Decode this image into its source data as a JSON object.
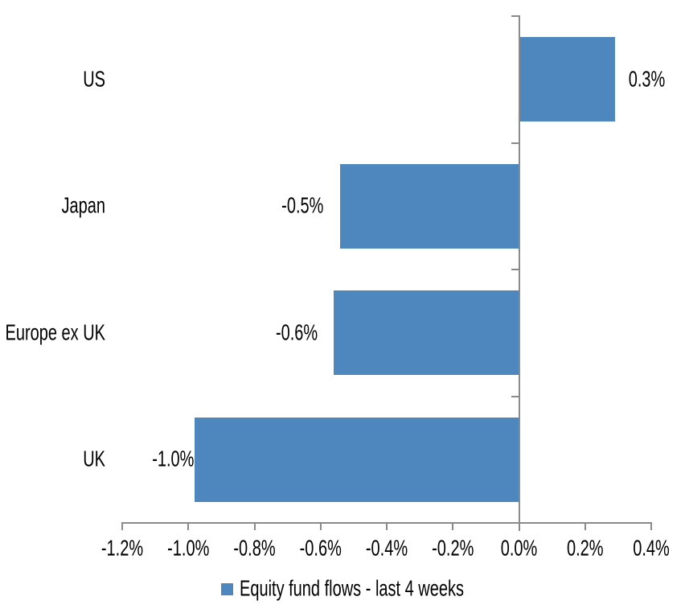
{
  "chart_data": {
    "type": "bar",
    "orientation": "horizontal",
    "title": "",
    "xlabel": "",
    "ylabel": "",
    "categories": [
      "US",
      "Japan",
      "Europe ex UK",
      "UK"
    ],
    "values": [
      0.3,
      -0.5,
      -0.6,
      -1.0
    ],
    "value_labels": [
      "0.3%",
      "-0.5%",
      "-0.6%",
      "-1.0%"
    ],
    "bar_render_values": [
      0.29,
      -0.54,
      -0.56,
      -0.98
    ],
    "series": [
      {
        "name": "Equity fund flows - last 4 weeks",
        "values": [
          0.3,
          -0.5,
          -0.6,
          -1.0
        ]
      }
    ],
    "x_axis": {
      "min": -1.2,
      "max": 0.4,
      "tick_step": 0.2,
      "unit": "%",
      "tick_labels": [
        "-1.2%",
        "-1.0%",
        "-0.8%",
        "-0.6%",
        "-0.4%",
        "-0.2%",
        "0.0%",
        "0.2%",
        "0.4%"
      ]
    },
    "legend": {
      "position": "bottom",
      "label": "Equity fund flows - last 4 weeks"
    },
    "grid": false,
    "data_labels_shown": true,
    "colors": {
      "bar": "#4E86BE",
      "axis": "#8A8A8A",
      "text": "#000000",
      "background": "#FFFFFF"
    }
  }
}
